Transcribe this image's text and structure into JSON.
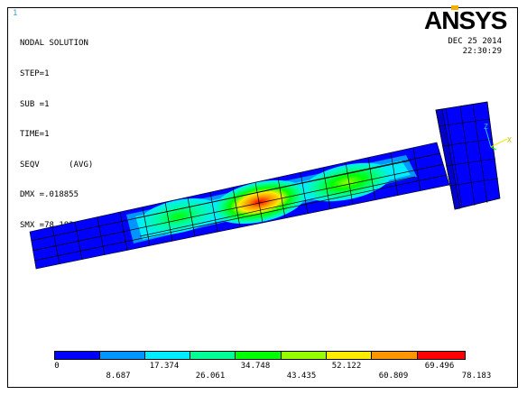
{
  "window_number": "1",
  "info": {
    "title": "NODAL SOLUTION",
    "step": "STEP=1",
    "sub": "SUB =1",
    "time": "TIME=1",
    "result": "SEQV      (AVG)",
    "dmx": "DMX =.018855",
    "smx": "SMX =78.183"
  },
  "date": "DEC 25 2014",
  "time_of_day": "22:30:29",
  "logo_text": "ANSYS",
  "triad_labels": {
    "z": "Z",
    "x": "X"
  },
  "colors": {
    "logo_accent": "#f2b100",
    "bands": [
      "#0000ff",
      "#0095ff",
      "#00ecff",
      "#00ff95",
      "#00ff00",
      "#95ff00",
      "#ffec00",
      "#ff9500",
      "#ff0000"
    ],
    "triad_z": "#2cc4e8",
    "triad_x": "#f2e600",
    "triad_y": "#00ff00"
  },
  "legend": {
    "top_values": [
      "0",
      "17.374",
      "34.748",
      "52.122",
      "69.496"
    ],
    "bottom_values": [
      "8.687",
      "26.061",
      "43.435",
      "60.809",
      "78.183"
    ]
  }
}
